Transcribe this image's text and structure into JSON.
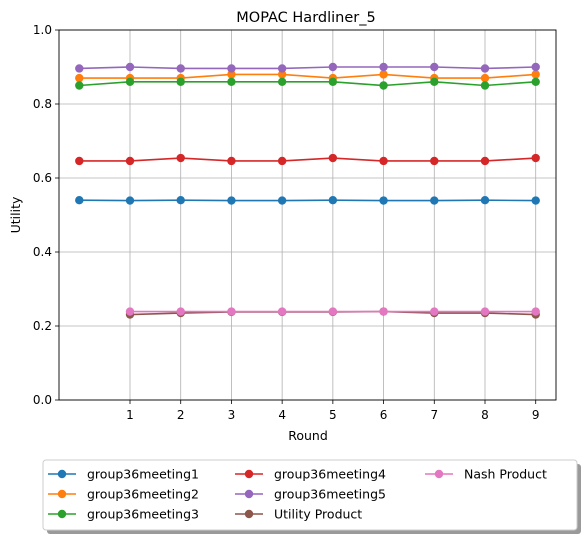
{
  "chart_data": {
    "type": "line",
    "title": "MOPAC Hardliner_5",
    "xlabel": "Round",
    "ylabel": "Utility",
    "xlim": [
      -0.4,
      9.4
    ],
    "ylim": [
      0.0,
      1.0
    ],
    "xticks": [
      1,
      2,
      3,
      4,
      5,
      6,
      7,
      8,
      9
    ],
    "yticks": [
      0.0,
      0.2,
      0.4,
      0.6,
      0.8,
      1.0
    ],
    "ytick_labels": [
      "0.0",
      "0.2",
      "0.4",
      "0.6",
      "0.8",
      "1.0"
    ],
    "grid": true,
    "legend_placement": "bottom-center, 3 columns, shadowed box",
    "series": [
      {
        "name": "group36meeting1",
        "color": "#1f77b4",
        "x": [
          0,
          1,
          2,
          3,
          4,
          5,
          6,
          7,
          8,
          9
        ],
        "y": [
          0.54,
          0.539,
          0.54,
          0.539,
          0.539,
          0.54,
          0.539,
          0.539,
          0.54,
          0.539
        ]
      },
      {
        "name": "group36meeting2",
        "color": "#ff7f0e",
        "x": [
          0,
          1,
          2,
          3,
          4,
          5,
          6,
          7,
          8,
          9
        ],
        "y": [
          0.87,
          0.87,
          0.87,
          0.88,
          0.88,
          0.87,
          0.88,
          0.87,
          0.87,
          0.88
        ]
      },
      {
        "name": "group36meeting3",
        "color": "#2ca02c",
        "x": [
          0,
          1,
          2,
          3,
          4,
          5,
          6,
          7,
          8,
          9
        ],
        "y": [
          0.85,
          0.86,
          0.86,
          0.86,
          0.86,
          0.86,
          0.85,
          0.86,
          0.85,
          0.86
        ]
      },
      {
        "name": "group36meeting4",
        "color": "#d62728",
        "x": [
          0,
          1,
          2,
          3,
          4,
          5,
          6,
          7,
          8,
          9
        ],
        "y": [
          0.646,
          0.646,
          0.654,
          0.646,
          0.646,
          0.654,
          0.646,
          0.646,
          0.646,
          0.654
        ]
      },
      {
        "name": "group36meeting5",
        "color": "#9467bd",
        "x": [
          0,
          1,
          2,
          3,
          4,
          5,
          6,
          7,
          8,
          9
        ],
        "y": [
          0.896,
          0.9,
          0.896,
          0.896,
          0.896,
          0.9,
          0.9,
          0.9,
          0.896,
          0.9
        ]
      },
      {
        "name": "Utility Product",
        "color": "#8c564b",
        "x": [
          1,
          2,
          3,
          4,
          5,
          6,
          7,
          8,
          9
        ],
        "y": [
          0.231,
          0.235,
          0.238,
          0.238,
          0.238,
          0.239,
          0.235,
          0.235,
          0.231
        ]
      },
      {
        "name": "Nash Product",
        "color": "#e377c2",
        "x": [
          1,
          2,
          3,
          4,
          5,
          6,
          7,
          8,
          9
        ],
        "y": [
          0.239,
          0.239,
          0.239,
          0.239,
          0.239,
          0.239,
          0.239,
          0.239,
          0.239
        ]
      }
    ]
  }
}
